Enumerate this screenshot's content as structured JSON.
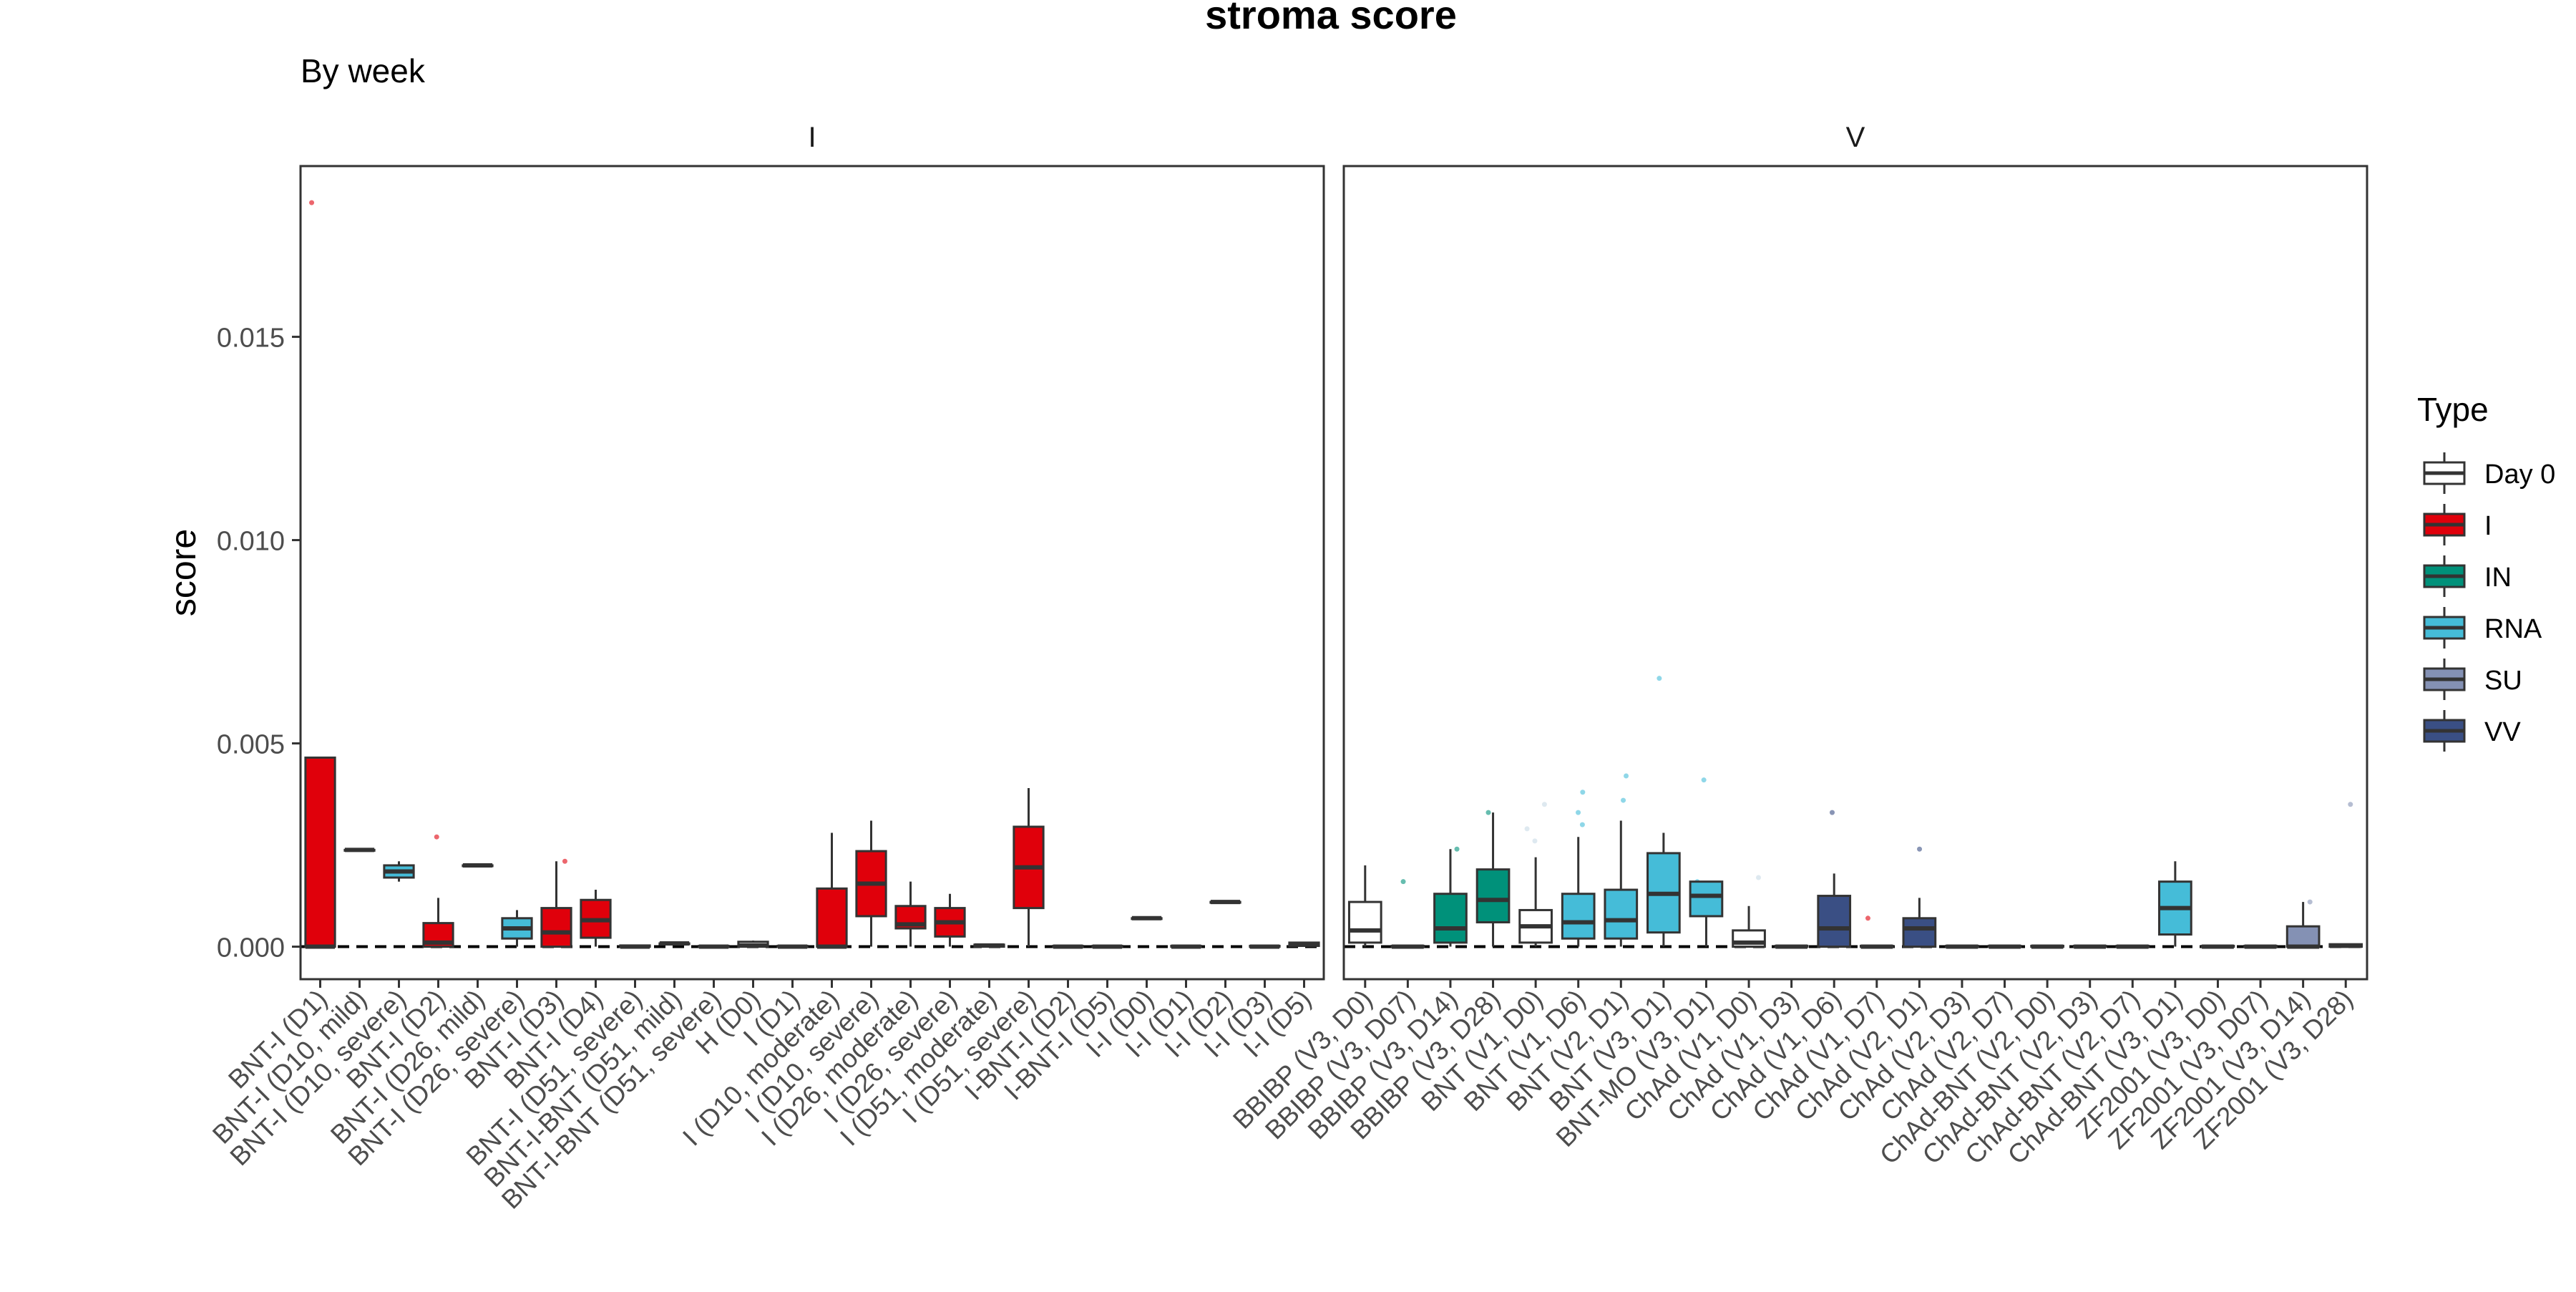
{
  "chart_data": {
    "type": "box",
    "title": "stroma score",
    "subtitle": "By week",
    "ylabel": "score",
    "xlabel": "",
    "ylim": [
      -0.0008,
      0.0192
    ],
    "yticks": [
      0.0,
      0.005,
      0.01,
      0.015
    ],
    "ytick_labels": [
      "0.000",
      "0.005",
      "0.010",
      "0.015"
    ],
    "reference_line": 0.0,
    "legend": {
      "title": "Type",
      "placement": "right",
      "entries": [
        {
          "label": "Day 0",
          "color": "#ffffff"
        },
        {
          "label": "I",
          "color": "#e0000b"
        },
        {
          "label": "IN",
          "color": "#00917a"
        },
        {
          "label": "RNA",
          "color": "#45bcd8"
        },
        {
          "label": "SU",
          "color": "#8491b4"
        },
        {
          "label": "VV",
          "color": "#3a4f84"
        }
      ]
    },
    "panels": [
      {
        "name": "I",
        "categories": [
          {
            "label": "BNT-I (D1)",
            "type": "I",
            "q1": 0.0,
            "median": 0.0,
            "q3": 0.00465,
            "lo": 0.0,
            "hi": 0.00465,
            "outliers": [
              0.0183
            ]
          },
          {
            "label": "BNT-I (D10, mild)",
            "type": "I",
            "q1": 0.00238,
            "median": 0.00238,
            "q3": 0.00238,
            "lo": 0.00238,
            "hi": 0.00238,
            "outliers": []
          },
          {
            "label": "BNT-I (D10, severe)",
            "type": "RNA",
            "q1": 0.0017,
            "median": 0.00185,
            "q3": 0.002,
            "lo": 0.0016,
            "hi": 0.0021,
            "outliers": []
          },
          {
            "label": "BNT-I (D2)",
            "type": "I",
            "q1": 0.0,
            "median": 0.0001,
            "q3": 0.00058,
            "lo": 0.0,
            "hi": 0.0012,
            "outliers": [
              0.0027
            ]
          },
          {
            "label": "BNT-I (D26, mild)",
            "type": "I",
            "q1": 0.002,
            "median": 0.002,
            "q3": 0.002,
            "lo": 0.002,
            "hi": 0.002,
            "outliers": []
          },
          {
            "label": "BNT-I (D26, severe)",
            "type": "RNA",
            "q1": 0.0002,
            "median": 0.00045,
            "q3": 0.0007,
            "lo": 0.0,
            "hi": 0.0009,
            "outliers": []
          },
          {
            "label": "BNT-I (D3)",
            "type": "I",
            "q1": 0.0,
            "median": 0.00035,
            "q3": 0.00095,
            "lo": 0.0,
            "hi": 0.0021,
            "outliers": [
              0.0021
            ]
          },
          {
            "label": "BNT-I (D4)",
            "type": "I",
            "q1": 0.00022,
            "median": 0.00065,
            "q3": 0.00115,
            "lo": 0.0,
            "hi": 0.0014,
            "outliers": []
          },
          {
            "label": "BNT-I (D51, severe)",
            "type": "I",
            "q1": 0.0,
            "median": 0.0,
            "q3": 3e-05,
            "lo": 0.0,
            "hi": 3e-05,
            "outliers": []
          },
          {
            "label": "BNT-I-BNT (D51, mild)",
            "type": "I",
            "q1": 8e-05,
            "median": 8e-05,
            "q3": 8e-05,
            "lo": 8e-05,
            "hi": 8e-05,
            "outliers": []
          },
          {
            "label": "BNT-I-BNT (D51, severe)",
            "type": "I",
            "q1": 0.0,
            "median": 0.0,
            "q3": 2e-05,
            "lo": 0.0,
            "hi": 2e-05,
            "outliers": []
          },
          {
            "label": "H (D0)",
            "type": "Day 0",
            "q1": 0.0,
            "median": 3e-05,
            "q3": 0.00012,
            "lo": 0.0,
            "hi": 0.00015,
            "outliers": []
          },
          {
            "label": "I (D1)",
            "type": "I",
            "q1": 0.0,
            "median": 0.0,
            "q3": 2e-05,
            "lo": 0.0,
            "hi": 2e-05,
            "outliers": []
          },
          {
            "label": "I (D10, moderate)",
            "type": "I",
            "q1": 0.0,
            "median": 0.0,
            "q3": 0.00143,
            "lo": 0.0,
            "hi": 0.0028,
            "outliers": []
          },
          {
            "label": "I (D10, severe)",
            "type": "I",
            "q1": 0.00075,
            "median": 0.00155,
            "q3": 0.00235,
            "lo": 0.0,
            "hi": 0.0031,
            "outliers": []
          },
          {
            "label": "I (D26, moderate)",
            "type": "I",
            "q1": 0.00045,
            "median": 0.00055,
            "q3": 0.001,
            "lo": 0.0,
            "hi": 0.0016,
            "outliers": []
          },
          {
            "label": "I (D26, severe)",
            "type": "I",
            "q1": 0.00025,
            "median": 0.0006,
            "q3": 0.00095,
            "lo": 0.0,
            "hi": 0.0013,
            "outliers": []
          },
          {
            "label": "I (D51, moderate)",
            "type": "I",
            "q1": 0.0,
            "median": 3e-05,
            "q3": 5e-05,
            "lo": 0.0,
            "hi": 5e-05,
            "outliers": []
          },
          {
            "label": "I (D51, severe)",
            "type": "I",
            "q1": 0.00095,
            "median": 0.00195,
            "q3": 0.00295,
            "lo": 0.0,
            "hi": 0.0039,
            "outliers": []
          },
          {
            "label": "I-BNT-I (D2)",
            "type": "I",
            "q1": 0.0,
            "median": 0.0,
            "q3": 2e-05,
            "lo": 0.0,
            "hi": 2e-05,
            "outliers": []
          },
          {
            "label": "I-BNT-I (D5)",
            "type": "I",
            "q1": 0.0,
            "median": 0.0,
            "q3": 2e-05,
            "lo": 0.0,
            "hi": 2e-05,
            "outliers": []
          },
          {
            "label": "I-I (D0)",
            "type": "I",
            "q1": 0.0007,
            "median": 0.0007,
            "q3": 0.0007,
            "lo": 0.0007,
            "hi": 0.0007,
            "outliers": []
          },
          {
            "label": "I-I (D1)",
            "type": "I",
            "q1": 0.0,
            "median": 0.0,
            "q3": 2e-05,
            "lo": 0.0,
            "hi": 2e-05,
            "outliers": []
          },
          {
            "label": "I-I (D2)",
            "type": "I",
            "q1": 0.0011,
            "median": 0.0011,
            "q3": 0.0011,
            "lo": 0.0011,
            "hi": 0.0011,
            "outliers": []
          },
          {
            "label": "I-I (D3)",
            "type": "I",
            "q1": 0.0,
            "median": 0.0,
            "q3": 2e-05,
            "lo": 0.0,
            "hi": 2e-05,
            "outliers": []
          },
          {
            "label": "I-I (D5)",
            "type": "I",
            "q1": 2e-05,
            "median": 5e-05,
            "q3": 0.0001,
            "lo": 2e-05,
            "hi": 0.0001,
            "outliers": []
          }
        ]
      },
      {
        "name": "V",
        "categories": [
          {
            "label": "BBIBP (V3, D0)",
            "type": "Day 0",
            "q1": 0.0001,
            "median": 0.0004,
            "q3": 0.0011,
            "lo": 0.0,
            "hi": 0.002,
            "outliers": []
          },
          {
            "label": "BBIBP (V3, D07)",
            "type": "IN",
            "q1": 0.0,
            "median": 0.0,
            "q3": 2e-05,
            "lo": 0.0,
            "hi": 2e-05,
            "outliers": [
              0.0016
            ]
          },
          {
            "label": "BBIBP (V3, D14)",
            "type": "IN",
            "q1": 0.0001,
            "median": 0.00045,
            "q3": 0.0013,
            "lo": 0.0,
            "hi": 0.0024,
            "outliers": [
              0.0024
            ]
          },
          {
            "label": "BBIBP (V3, D28)",
            "type": "IN",
            "q1": 0.0006,
            "median": 0.00115,
            "q3": 0.0019,
            "lo": 0.0,
            "hi": 0.0033,
            "outliers": [
              0.0033
            ]
          },
          {
            "label": "BNT (V1, D0)",
            "type": "Day 0",
            "q1": 0.0001,
            "median": 0.0005,
            "q3": 0.0009,
            "lo": 0.0,
            "hi": 0.0022,
            "outliers": [
              0.0035,
              0.0029,
              0.0026
            ]
          },
          {
            "label": "BNT (V1, D6)",
            "type": "RNA",
            "q1": 0.0002,
            "median": 0.0006,
            "q3": 0.0013,
            "lo": 0.0,
            "hi": 0.0027,
            "outliers": [
              0.0038,
              0.0033,
              0.003
            ]
          },
          {
            "label": "BNT (V2, D1)",
            "type": "RNA",
            "q1": 0.0002,
            "median": 0.00065,
            "q3": 0.0014,
            "lo": 0.0,
            "hi": 0.0031,
            "outliers": [
              0.0042,
              0.0036
            ]
          },
          {
            "label": "BNT (V3, D1)",
            "type": "RNA",
            "q1": 0.00035,
            "median": 0.0013,
            "q3": 0.0023,
            "lo": 0.0,
            "hi": 0.0028,
            "outliers": [
              0.0066
            ]
          },
          {
            "label": "BNT-MO (V3, D1)",
            "type": "RNA",
            "q1": 0.00075,
            "median": 0.00125,
            "q3": 0.0016,
            "lo": 0.0,
            "hi": 0.0016,
            "outliers": [
              0.0041,
              0.0016
            ]
          },
          {
            "label": "ChAd (V1, D0)",
            "type": "Day 0",
            "q1": 0.0,
            "median": 0.0001,
            "q3": 0.0004,
            "lo": 0.0,
            "hi": 0.001,
            "outliers": [
              0.0017
            ]
          },
          {
            "label": "ChAd (V1, D3)",
            "type": "RNA",
            "q1": 0.0,
            "median": 0.0,
            "q3": 2e-05,
            "lo": 0.0,
            "hi": 2e-05,
            "outliers": []
          },
          {
            "label": "ChAd (V1, D6)",
            "type": "VV",
            "q1": 0.0,
            "median": 0.00045,
            "q3": 0.00125,
            "lo": 0.0,
            "hi": 0.0018,
            "outliers": [
              0.0033
            ]
          },
          {
            "label": "ChAd (V1, D7)",
            "type": "I",
            "q1": 0.0,
            "median": 0.0,
            "q3": 2e-05,
            "lo": 0.0,
            "hi": 2e-05,
            "outliers": [
              0.0007
            ]
          },
          {
            "label": "ChAd (V2, D1)",
            "type": "VV",
            "q1": 0.0,
            "median": 0.00045,
            "q3": 0.0007,
            "lo": 0.0,
            "hi": 0.0012,
            "outliers": [
              0.0024
            ]
          },
          {
            "label": "ChAd (V2, D3)",
            "type": "RNA",
            "q1": 0.0,
            "median": 0.0,
            "q3": 2e-05,
            "lo": 0.0,
            "hi": 2e-05,
            "outliers": []
          },
          {
            "label": "ChAd (V2, D7)",
            "type": "RNA",
            "q1": 0.0,
            "median": 0.0,
            "q3": 2e-05,
            "lo": 0.0,
            "hi": 2e-05,
            "outliers": []
          },
          {
            "label": "ChAd-BNT (V2, D0)",
            "type": "RNA",
            "q1": 0.0,
            "median": 0.0,
            "q3": 2e-05,
            "lo": 0.0,
            "hi": 2e-05,
            "outliers": []
          },
          {
            "label": "ChAd-BNT (V2, D3)",
            "type": "RNA",
            "q1": 0.0,
            "median": 0.0,
            "q3": 2e-05,
            "lo": 0.0,
            "hi": 2e-05,
            "outliers": []
          },
          {
            "label": "ChAd-BNT (V2, D7)",
            "type": "RNA",
            "q1": 0.0,
            "median": 0.0,
            "q3": 2e-05,
            "lo": 0.0,
            "hi": 2e-05,
            "outliers": []
          },
          {
            "label": "ChAd-BNT (V3, D1)",
            "type": "RNA",
            "q1": 0.0003,
            "median": 0.00095,
            "q3": 0.0016,
            "lo": 0.0,
            "hi": 0.0021,
            "outliers": []
          },
          {
            "label": "ZF2001 (V3, D0)",
            "type": "Day 0",
            "q1": 0.0,
            "median": 0.0,
            "q3": 2e-05,
            "lo": 0.0,
            "hi": 2e-05,
            "outliers": []
          },
          {
            "label": "ZF2001 (V3, D07)",
            "type": "Day 0",
            "q1": 0.0,
            "median": 0.0,
            "q3": 2e-05,
            "lo": 0.0,
            "hi": 2e-05,
            "outliers": []
          },
          {
            "label": "ZF2001 (V3, D14)",
            "type": "SU",
            "q1": 0.0,
            "median": 0.0,
            "q3": 0.0005,
            "lo": 0.0,
            "hi": 0.0011,
            "outliers": [
              0.0011
            ]
          },
          {
            "label": "ZF2001 (V3, D28)",
            "type": "SU",
            "q1": 0.0,
            "median": 2e-05,
            "q3": 6e-05,
            "lo": 0.0,
            "hi": 6e-05,
            "outliers": [
              0.0035
            ]
          }
        ]
      }
    ]
  }
}
